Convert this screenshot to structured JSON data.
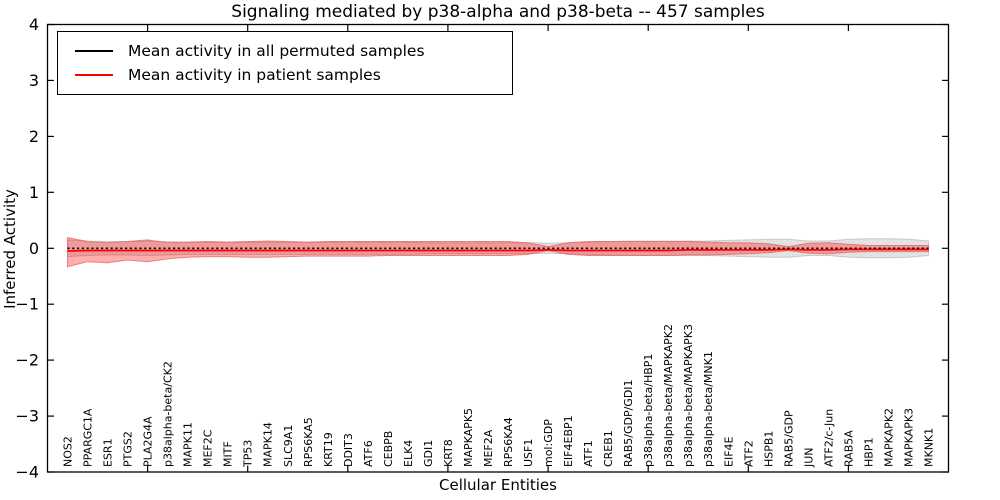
{
  "chart_data": {
    "type": "line",
    "title": "Signaling mediated by p38-alpha and p38-beta -- 457 samples",
    "xlabel": "Cellular Entities",
    "ylabel": "Inferred Activity",
    "ylim": [
      -4,
      4
    ],
    "yticks": [
      -4,
      -3,
      -2,
      -1,
      0,
      1,
      2,
      3,
      4
    ],
    "ytick_labels": [
      "−4",
      "−3",
      "−2",
      "−1",
      "0",
      "1",
      "2",
      "3",
      "4"
    ],
    "xtick_positions": [
      5,
      10,
      15,
      20,
      25,
      30,
      35,
      40
    ],
    "grid": false,
    "legend_position": "upper left",
    "categories": [
      "NOS2",
      "PPARGC1A",
      "ESR1",
      "PTGS2",
      "PLA2G4A",
      "p38alpha-beta/CK2",
      "MAPK11",
      "MEF2C",
      "MITF",
      "TP53",
      "MAPK14",
      "SLC9A1",
      "RPS6KA5",
      "KRT19",
      "DDIT3",
      "ATF6",
      "CEBPB",
      "ELK4",
      "GDI1",
      "KRT8",
      "MAPKAPK5",
      "MEF2A",
      "RPS6KA4",
      "USF1",
      "mol:GDP",
      "EIF4EBP1",
      "ATF1",
      "CREB1",
      "RAB5/GDP/GDI1",
      "p38alpha-beta/HBP1",
      "p38alpha-beta/MAPKAPK2",
      "p38alpha-beta/MAPKAPK3",
      "p38alpha-beta/MNK1",
      "EIF4E",
      "ATF2",
      "HSPB1",
      "RAB5/GDP",
      "JUN",
      "ATF2/c-Jun",
      "RAB5A",
      "HBP1",
      "MAPKAPK2",
      "MAPKAPK3",
      "MKNK1"
    ],
    "series": [
      {
        "name": "Mean activity in all permuted samples",
        "color": "#000000",
        "line_style": "dashed",
        "values": [
          0,
          0,
          0,
          0,
          0,
          0,
          0,
          0,
          0,
          0,
          0,
          0,
          0,
          0,
          0,
          0,
          0,
          0,
          0,
          0,
          0,
          0,
          0,
          0,
          0,
          0,
          0,
          0,
          0,
          0,
          0,
          0,
          0,
          0,
          0,
          0,
          0,
          0,
          0,
          0,
          0,
          0,
          0,
          0
        ]
      },
      {
        "name": "Mean activity in patient samples",
        "color": "#ff0000",
        "line_style": "solid",
        "values": [
          -0.05,
          -0.04,
          -0.04,
          -0.04,
          -0.04,
          -0.04,
          -0.04,
          -0.04,
          -0.04,
          -0.04,
          -0.04,
          -0.04,
          -0.04,
          -0.04,
          -0.04,
          -0.04,
          -0.04,
          -0.04,
          -0.04,
          -0.04,
          -0.04,
          -0.04,
          -0.04,
          -0.04,
          -0.03,
          -0.04,
          -0.04,
          -0.04,
          -0.04,
          -0.04,
          -0.04,
          -0.03,
          -0.03,
          -0.03,
          -0.03,
          -0.03,
          -0.02,
          -0.03,
          -0.03,
          -0.02,
          -0.02,
          -0.02,
          -0.02,
          -0.02
        ]
      }
    ],
    "bands": [
      {
        "name": "permuted samples range",
        "color": "#999999",
        "upper": [
          0.15,
          0.13,
          0.12,
          0.12,
          0.13,
          0.12,
          0.11,
          0.11,
          0.11,
          0.11,
          0.11,
          0.11,
          0.11,
          0.11,
          0.11,
          0.11,
          0.11,
          0.11,
          0.1,
          0.1,
          0.1,
          0.1,
          0.1,
          0.1,
          0.09,
          0.1,
          0.11,
          0.12,
          0.13,
          0.13,
          0.13,
          0.13,
          0.13,
          0.14,
          0.15,
          0.16,
          0.16,
          0.13,
          0.13,
          0.16,
          0.17,
          0.17,
          0.16,
          0.13
        ],
        "lower": [
          -0.15,
          -0.13,
          -0.12,
          -0.12,
          -0.13,
          -0.12,
          -0.11,
          -0.11,
          -0.11,
          -0.11,
          -0.11,
          -0.11,
          -0.11,
          -0.11,
          -0.11,
          -0.11,
          -0.11,
          -0.11,
          -0.1,
          -0.1,
          -0.1,
          -0.1,
          -0.1,
          -0.1,
          -0.09,
          -0.1,
          -0.11,
          -0.12,
          -0.13,
          -0.13,
          -0.13,
          -0.13,
          -0.13,
          -0.14,
          -0.15,
          -0.16,
          -0.16,
          -0.13,
          -0.13,
          -0.16,
          -0.17,
          -0.17,
          -0.16,
          -0.13
        ]
      },
      {
        "name": "patient samples range",
        "color": "#ff0000",
        "upper": [
          0.19,
          0.12,
          0.1,
          0.12,
          0.15,
          0.1,
          0.11,
          0.12,
          0.11,
          0.12,
          0.13,
          0.12,
          0.11,
          0.12,
          0.12,
          0.12,
          0.12,
          0.12,
          0.12,
          0.12,
          0.12,
          0.12,
          0.12,
          0.1,
          0.03,
          0.1,
          0.12,
          0.12,
          0.12,
          0.12,
          0.12,
          0.12,
          0.11,
          0.1,
          0.1,
          0.08,
          0.03,
          0.09,
          0.1,
          0.07,
          0.05,
          0.05,
          0.05,
          0.05
        ],
        "lower": [
          -0.33,
          -0.24,
          -0.26,
          -0.21,
          -0.24,
          -0.19,
          -0.16,
          -0.15,
          -0.15,
          -0.16,
          -0.16,
          -0.15,
          -0.14,
          -0.14,
          -0.14,
          -0.14,
          -0.13,
          -0.13,
          -0.13,
          -0.13,
          -0.13,
          -0.13,
          -0.13,
          -0.11,
          -0.04,
          -0.11,
          -0.13,
          -0.13,
          -0.13,
          -0.13,
          -0.13,
          -0.12,
          -0.12,
          -0.11,
          -0.1,
          -0.08,
          -0.04,
          -0.09,
          -0.1,
          -0.07,
          -0.06,
          -0.06,
          -0.06,
          -0.06
        ]
      }
    ]
  },
  "legend": {
    "items": [
      {
        "label": "Mean activity in all permuted samples",
        "color": "#000000"
      },
      {
        "label": "Mean activity in patient samples",
        "color": "#ff0000"
      }
    ]
  }
}
